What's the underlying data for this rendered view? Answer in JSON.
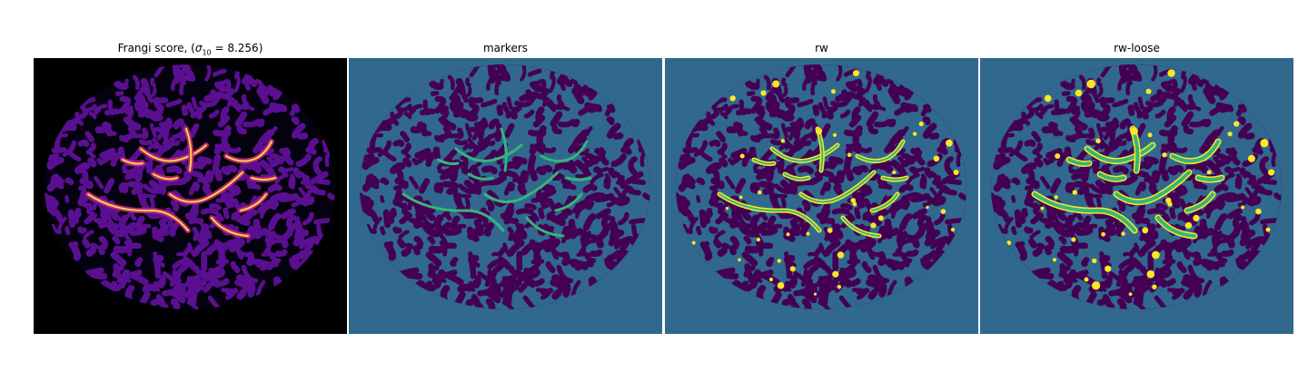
{
  "panels": [
    {
      "id": "frangi",
      "title_prefix": "Frangi score, (",
      "sigma_symbol": "σ",
      "sigma_sub": "10",
      "title_suffix": " = 8.256)",
      "background": "#000000",
      "mask": "#2a0f6e"
    },
    {
      "id": "markers",
      "title": "markers",
      "background": "#31688e",
      "mask": "#440154",
      "marker": "#35b779"
    },
    {
      "id": "rw",
      "title": "rw",
      "background": "#31688e",
      "mask": "#440154",
      "marker": "#35b779",
      "highlight": "#fde725"
    },
    {
      "id": "rw-loose",
      "title": "rw-loose",
      "background": "#31688e",
      "mask": "#440154",
      "marker": "#35b779",
      "highlight": "#fde725"
    }
  ],
  "colors": {
    "frangi_low": "#5a0f90",
    "frangi_mid": "#c0267a",
    "frangi_high": "#fcd34d"
  }
}
